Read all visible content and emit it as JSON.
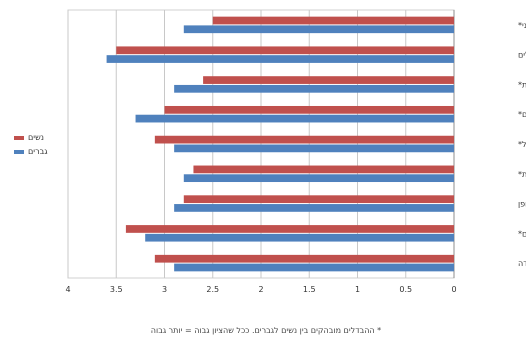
{
  "chart_data": {
    "type": "bar",
    "orientation": "horizontal",
    "x_axis_reversed": true,
    "categories": [
      "ניהול ארגוני*",
      "הפעלת כלים",
      "אמינות*",
      "ביצועים*",
      "ניהול*",
      "קבלת החלטות*",
      "הגדרת אופן",
      "ניהול תהליכים*",
      "איכות העבודה"
    ],
    "series": [
      {
        "name": "נשים",
        "color": "#c0504d",
        "values": [
          2.5,
          3.5,
          2.6,
          3.0,
          3.1,
          2.7,
          2.8,
          3.4,
          3.1
        ]
      },
      {
        "name": "גברים",
        "color": "#4f81bd",
        "values": [
          2.8,
          3.6,
          2.9,
          3.3,
          2.9,
          2.8,
          2.9,
          3.2,
          2.9
        ]
      }
    ],
    "xlim": [
      0,
      4
    ],
    "ticks": [
      "0",
      "0.5",
      "1",
      "1.5",
      "2",
      "2.5",
      "3",
      "3.5",
      "4"
    ],
    "grid": true,
    "legend_position": "left",
    "title": "",
    "xlabel": "",
    "ylabel": ""
  },
  "footnote": "* ההבדלים מובהקים בין נשים לגברים. ככל שהציון גבוה = יותר גבוה"
}
